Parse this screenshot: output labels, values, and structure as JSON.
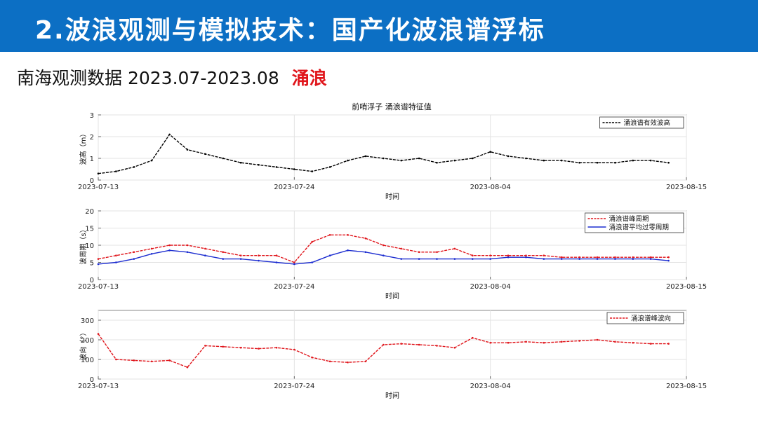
{
  "slide": {
    "title": "2.波浪观测与模拟技术：国产化波浪谱浮标",
    "subtitle": "南海观测数据 2023.07-2023.08",
    "highlight": "涌浪"
  },
  "figure": {
    "title": "前哨浮子  涌浪谱特征值"
  },
  "colors": {
    "banner": "#0c6fc4",
    "black_series": "#000000",
    "red_series": "#e0151b",
    "blue_series": "#1c2dd0"
  },
  "chart_data": [
    {
      "type": "line",
      "ylabel": "波高（m）",
      "xlabel": "时间",
      "x_ticks": [
        "2023-07-13",
        "2023-07-24",
        "2023-08-04",
        "2023-08-15"
      ],
      "ylim": [
        0,
        3
      ],
      "y_ticks": [
        0,
        1,
        2,
        3
      ],
      "grid": true,
      "legend_position": "top-right",
      "series": [
        {
          "name": "涌浪谱有效波高",
          "color": "#000000",
          "style": "dashed",
          "x": [
            "2023-07-13",
            "2023-07-14",
            "2023-07-15",
            "2023-07-16",
            "2023-07-17",
            "2023-07-18",
            "2023-07-19",
            "2023-07-20",
            "2023-07-21",
            "2023-07-22",
            "2023-07-23",
            "2023-07-24",
            "2023-07-25",
            "2023-07-26",
            "2023-07-27",
            "2023-07-28",
            "2023-07-29",
            "2023-07-30",
            "2023-07-31",
            "2023-08-01",
            "2023-08-02",
            "2023-08-03",
            "2023-08-04",
            "2023-08-05",
            "2023-08-06",
            "2023-08-07",
            "2023-08-08",
            "2023-08-09",
            "2023-08-10",
            "2023-08-11",
            "2023-08-12",
            "2023-08-13",
            "2023-08-14"
          ],
          "values": [
            0.3,
            0.4,
            0.6,
            0.9,
            2.1,
            1.4,
            1.2,
            1.0,
            0.8,
            0.7,
            0.6,
            0.5,
            0.4,
            0.6,
            0.9,
            1.1,
            1.0,
            0.9,
            1.0,
            0.8,
            0.9,
            1.0,
            1.3,
            1.1,
            1.0,
            0.9,
            0.9,
            0.8,
            0.8,
            0.8,
            0.9,
            0.9,
            0.8
          ]
        }
      ]
    },
    {
      "type": "line",
      "ylabel": "波周期（s）",
      "xlabel": "时间",
      "x_ticks": [
        "2023-07-13",
        "2023-07-24",
        "2023-08-04",
        "2023-08-15"
      ],
      "ylim": [
        0,
        20
      ],
      "y_ticks": [
        0,
        5,
        10,
        15,
        20
      ],
      "grid": true,
      "legend_position": "top-right",
      "series": [
        {
          "name": "涌浪谱峰周期",
          "color": "#e0151b",
          "style": "dashed",
          "x": [
            "2023-07-13",
            "2023-07-14",
            "2023-07-15",
            "2023-07-16",
            "2023-07-17",
            "2023-07-18",
            "2023-07-19",
            "2023-07-20",
            "2023-07-21",
            "2023-07-22",
            "2023-07-23",
            "2023-07-24",
            "2023-07-25",
            "2023-07-26",
            "2023-07-27",
            "2023-07-28",
            "2023-07-29",
            "2023-07-30",
            "2023-07-31",
            "2023-08-01",
            "2023-08-02",
            "2023-08-03",
            "2023-08-04",
            "2023-08-05",
            "2023-08-06",
            "2023-08-07",
            "2023-08-08",
            "2023-08-09",
            "2023-08-10",
            "2023-08-11",
            "2023-08-12",
            "2023-08-13",
            "2023-08-14"
          ],
          "values": [
            6,
            7,
            8,
            9,
            10,
            10,
            9,
            8,
            7,
            7,
            7,
            5,
            11,
            13,
            13,
            12,
            10,
            9,
            8,
            8,
            9,
            7,
            7,
            7,
            7,
            7,
            6.5,
            6.5,
            6.5,
            6.5,
            6.5,
            6.5,
            6.5
          ]
        },
        {
          "name": "涌浪谱平均过零周期",
          "color": "#1c2dd0",
          "style": "solid",
          "x": [
            "2023-07-13",
            "2023-07-14",
            "2023-07-15",
            "2023-07-16",
            "2023-07-17",
            "2023-07-18",
            "2023-07-19",
            "2023-07-20",
            "2023-07-21",
            "2023-07-22",
            "2023-07-23",
            "2023-07-24",
            "2023-07-25",
            "2023-07-26",
            "2023-07-27",
            "2023-07-28",
            "2023-07-29",
            "2023-07-30",
            "2023-07-31",
            "2023-08-01",
            "2023-08-02",
            "2023-08-03",
            "2023-08-04",
            "2023-08-05",
            "2023-08-06",
            "2023-08-07",
            "2023-08-08",
            "2023-08-09",
            "2023-08-10",
            "2023-08-11",
            "2023-08-12",
            "2023-08-13",
            "2023-08-14"
          ],
          "values": [
            4.5,
            5,
            6,
            7.5,
            8.5,
            8,
            7,
            6,
            6,
            5.5,
            5,
            4.5,
            5,
            7,
            8.5,
            8,
            7,
            6,
            6,
            6,
            6,
            6,
            6,
            6.5,
            6.5,
            6,
            6,
            6,
            6,
            6,
            6,
            6,
            5.5
          ]
        }
      ]
    },
    {
      "type": "line",
      "ylabel": "波向（°）",
      "xlabel": "时间",
      "x_ticks": [
        "2023-07-13",
        "2023-07-24",
        "2023-08-04",
        "2023-08-15"
      ],
      "ylim": [
        0,
        350
      ],
      "y_ticks": [
        0,
        100,
        200,
        300
      ],
      "grid": true,
      "legend_position": "top-right",
      "series": [
        {
          "name": "涌浪谱峰波向",
          "color": "#e0151b",
          "style": "dashed",
          "x": [
            "2023-07-13",
            "2023-07-14",
            "2023-07-15",
            "2023-07-16",
            "2023-07-17",
            "2023-07-18",
            "2023-07-19",
            "2023-07-20",
            "2023-07-21",
            "2023-07-22",
            "2023-07-23",
            "2023-07-24",
            "2023-07-25",
            "2023-07-26",
            "2023-07-27",
            "2023-07-28",
            "2023-07-29",
            "2023-07-30",
            "2023-07-31",
            "2023-08-01",
            "2023-08-02",
            "2023-08-03",
            "2023-08-04",
            "2023-08-05",
            "2023-08-06",
            "2023-08-07",
            "2023-08-08",
            "2023-08-09",
            "2023-08-10",
            "2023-08-11",
            "2023-08-12",
            "2023-08-13",
            "2023-08-14"
          ],
          "values": [
            230,
            100,
            95,
            90,
            95,
            60,
            170,
            165,
            160,
            155,
            160,
            150,
            110,
            90,
            85,
            90,
            175,
            180,
            175,
            170,
            160,
            210,
            185,
            185,
            190,
            185,
            190,
            195,
            200,
            190,
            185,
            180,
            180
          ]
        }
      ]
    }
  ]
}
